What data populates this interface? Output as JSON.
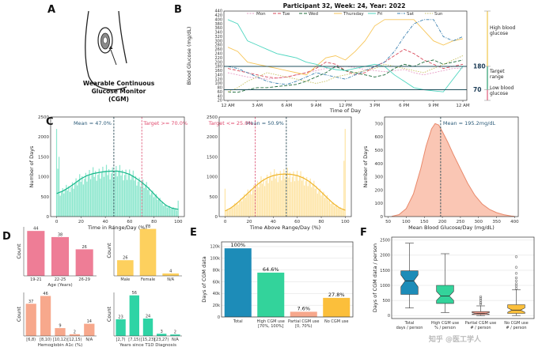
{
  "panels": {
    "A": "A",
    "B": "B",
    "C": "C",
    "D": "D",
    "E": "E",
    "F": "F"
  },
  "panel_a": {
    "caption_lines": [
      "Wearable Continuous",
      "Glucose Monitor",
      "(CGM)"
    ]
  },
  "colors": {
    "pink": "#ee7d96",
    "yellow": "#fdd05e",
    "salmon": "#f7a88c",
    "teal": "#2fd4a5",
    "blue": "#1d8cb8",
    "green_e": "#33d39b",
    "peach": "#f4a091",
    "orange": "#fbbf3b",
    "red_line": "#e06080",
    "dash_line": "#2a4a55"
  },
  "chart_data": [
    {
      "id": "B",
      "type": "line",
      "title": "Participant 32, Week: 24, Year: 2022",
      "xlabel": "Time of Day",
      "ylabel": "Blood Glucose (mg/dL)",
      "x_ticks": [
        "12 AM",
        "3 AM",
        "6 AM",
        "9 AM",
        "12 PM",
        "3 PM",
        "6 PM",
        "9 PM",
        "12 AM"
      ],
      "y_ticks": [
        20,
        40,
        60,
        80,
        100,
        120,
        140,
        160,
        180,
        200,
        220,
        240,
        260,
        280,
        300,
        320,
        340,
        360,
        380,
        400,
        420,
        440
      ],
      "ylim": [
        20,
        440
      ],
      "xlim_hours": [
        0,
        24
      ],
      "thresholds": [
        {
          "value": 180,
          "label": "180"
        },
        {
          "value": 70,
          "label": "70"
        }
      ],
      "side_labels": {
        "high": [
          "High blood",
          "glucose"
        ],
        "target": [
          "Target",
          "range"
        ],
        "low": [
          "Low blood",
          "glucose"
        ]
      },
      "legend_position": "top",
      "series": [
        {
          "name": "Mon",
          "color": "#e8a0c8",
          "dash": "2,1.5",
          "values": [
            150,
            140,
            130,
            125,
            120,
            125,
            130,
            140,
            150,
            160,
            170,
            175,
            180,
            175,
            165,
            160,
            155,
            160,
            165,
            150,
            140,
            150,
            160,
            170,
            170
          ]
        },
        {
          "name": "Tue",
          "color": "#d84a5a",
          "dash": "4,2",
          "values": [
            170,
            160,
            150,
            140,
            130,
            125,
            130,
            140,
            150,
            170,
            200,
            190,
            160,
            140,
            150,
            180,
            200,
            230,
            260,
            240,
            210,
            190,
            170,
            180,
            190
          ]
        },
        {
          "name": "Wed",
          "color": "#1e6b3a",
          "dash": "4,2",
          "values": [
            60,
            58,
            70,
            80,
            80,
            85,
            90,
            95,
            110,
            130,
            150,
            180,
            160,
            150,
            140,
            130,
            140,
            170,
            190,
            180,
            200,
            210,
            190,
            200,
            210
          ]
        },
        {
          "name": "Thursday",
          "color": "#f7c65a",
          "dash": "",
          "values": [
            270,
            250,
            200,
            190,
            180,
            170,
            160,
            150,
            140,
            180,
            220,
            230,
            210,
            250,
            300,
            370,
            400,
            400,
            400,
            400,
            350,
            300,
            280,
            300,
            310
          ]
        },
        {
          "name": "Fri",
          "color": "#4fd6c0",
          "dash": "",
          "values": [
            400,
            380,
            300,
            280,
            260,
            240,
            230,
            220,
            200,
            190,
            175,
            165,
            160,
            170,
            180,
            190,
            180,
            140,
            110,
            80,
            70,
            65,
            60,
            120,
            180
          ]
        },
        {
          "name": "Sat",
          "color": "#3a80b0",
          "dash": "4,1.5,1,1.5",
          "values": [
            180,
            170,
            150,
            130,
            110,
            100,
            95,
            110,
            130,
            150,
            140,
            130,
            120,
            140,
            160,
            180,
            200,
            250,
            320,
            380,
            400,
            400,
            320,
            300,
            320
          ]
        },
        {
          "name": "Sun",
          "color": "#c8c060",
          "dash": "1.5,1.5",
          "values": [
            60,
            80,
            110,
            130,
            150,
            140,
            130,
            120,
            110,
            100,
            110,
            130,
            140,
            150,
            160,
            170,
            190,
            180,
            170,
            160,
            150,
            170,
            190,
            210,
            230
          ]
        }
      ]
    },
    {
      "id": "C1",
      "type": "bar",
      "xlabel": "Time in Range/Day (%)",
      "ylabel": "Number of Days",
      "x_ticks": [
        0,
        20,
        40,
        60,
        80,
        100
      ],
      "y_ticks": [
        0,
        500,
        1000,
        1500,
        2000,
        2500
      ],
      "ylim": [
        0,
        2500
      ],
      "xlim": [
        -5,
        105
      ],
      "mean_label": "Mean = 47.0%",
      "target_label": "Target >= 70.0%",
      "mean_x": 47.0,
      "target_x": 70.0,
      "curve": [
        [
          0,
          580
        ],
        [
          5,
          640
        ],
        [
          10,
          730
        ],
        [
          15,
          840
        ],
        [
          20,
          950
        ],
        [
          25,
          1030
        ],
        [
          30,
          1080
        ],
        [
          35,
          1110
        ],
        [
          40,
          1130
        ],
        [
          45,
          1140
        ],
        [
          50,
          1140
        ],
        [
          55,
          1110
        ],
        [
          60,
          1060
        ],
        [
          65,
          970
        ],
        [
          70,
          860
        ],
        [
          75,
          730
        ],
        [
          80,
          570
        ],
        [
          85,
          410
        ],
        [
          90,
          280
        ],
        [
          95,
          210
        ],
        [
          100,
          180
        ]
      ],
      "spikes": [
        [
          0,
          2200
        ],
        [
          1,
          1200
        ],
        [
          2,
          1500
        ],
        [
          100,
          400
        ]
      ]
    },
    {
      "id": "C2",
      "type": "bar",
      "xlabel": "Time Above Range/Day (%)",
      "ylabel": "",
      "x_ticks": [
        0,
        20,
        40,
        60,
        80,
        100
      ],
      "y_ticks": [
        0,
        500,
        1000,
        1500,
        2000,
        2500
      ],
      "ylim": [
        0,
        2500
      ],
      "xlim": [
        -5,
        105
      ],
      "mean_label": "Mean = 50.9%",
      "target_label": "Target <= 25.0%",
      "mean_x": 50.9,
      "target_x": 25.0,
      "curve": [
        [
          0,
          140
        ],
        [
          5,
          220
        ],
        [
          10,
          340
        ],
        [
          15,
          480
        ],
        [
          20,
          620
        ],
        [
          25,
          760
        ],
        [
          30,
          880
        ],
        [
          35,
          970
        ],
        [
          40,
          1030
        ],
        [
          45,
          1060
        ],
        [
          50,
          1070
        ],
        [
          55,
          1060
        ],
        [
          60,
          1030
        ],
        [
          65,
          970
        ],
        [
          70,
          880
        ],
        [
          75,
          760
        ],
        [
          80,
          620
        ],
        [
          85,
          470
        ],
        [
          90,
          330
        ],
        [
          95,
          220
        ],
        [
          100,
          160
        ]
      ],
      "spikes": [
        [
          0,
          700
        ],
        [
          100,
          2200
        ],
        [
          99,
          1400
        ]
      ]
    },
    {
      "id": "C3",
      "type": "area",
      "xlabel": "Mean Blood Glucose/Day (mg/dL)",
      "ylabel": "Number of Days",
      "x_ticks": [
        50,
        100,
        150,
        200,
        250,
        300,
        350,
        400
      ],
      "y_ticks": [
        0,
        100,
        200,
        300,
        400,
        500,
        600,
        700
      ],
      "ylim": [
        0,
        750
      ],
      "xlim": [
        40,
        410
      ],
      "mean_label": "Mean = 195.2mg/dL",
      "mean_x": 195.2,
      "curve": [
        [
          60,
          2
        ],
        [
          80,
          15
        ],
        [
          100,
          60
        ],
        [
          120,
          170
        ],
        [
          140,
          360
        ],
        [
          155,
          530
        ],
        [
          170,
          660
        ],
        [
          180,
          700
        ],
        [
          190,
          690
        ],
        [
          200,
          640
        ],
        [
          215,
          560
        ],
        [
          230,
          470
        ],
        [
          250,
          360
        ],
        [
          270,
          250
        ],
        [
          290,
          160
        ],
        [
          310,
          95
        ],
        [
          330,
          55
        ],
        [
          350,
          30
        ],
        [
          370,
          14
        ],
        [
          390,
          5
        ],
        [
          400,
          2
        ]
      ]
    },
    {
      "id": "D1",
      "type": "bar",
      "xlabel": "Age (Years)",
      "ylabel": "Count",
      "categories": [
        "19-21",
        "22-25",
        "26-29"
      ],
      "values": [
        44,
        38,
        26
      ],
      "ylim": [
        0,
        48
      ]
    },
    {
      "id": "D2",
      "type": "bar",
      "xlabel": "",
      "ylabel": "Count",
      "categories": [
        "Male",
        "Female",
        "N/A"
      ],
      "values": [
        26,
        78,
        4
      ],
      "ylim": [
        0,
        84
      ]
    },
    {
      "id": "D3",
      "type": "bar",
      "xlabel": "Hemoglobin A1c (%)",
      "ylabel": "Count",
      "categories": [
        "[6,8)",
        "[8,10)",
        "[10,12)",
        "[12,15)",
        "N/A"
      ],
      "values": [
        37,
        46,
        9,
        2,
        14
      ],
      "ylim": [
        0,
        50
      ]
    },
    {
      "id": "D4",
      "type": "bar",
      "xlabel": "Years since T1D Diagnosis",
      "ylabel": "Count",
      "categories": [
        "[2,7)",
        "[7,15)",
        "[15,23)",
        "[23,27)",
        "N/A"
      ],
      "values": [
        23,
        56,
        24,
        3,
        2
      ],
      "ylim": [
        0,
        60
      ]
    },
    {
      "id": "E",
      "type": "bar",
      "xlabel": "",
      "ylabel": "Days of CGM data",
      "categories": [
        "Total",
        "High CGM use\n[70%, 100%]",
        "Partial CGM use\n[0, 70%)",
        "No CGM use"
      ],
      "values": [
        100,
        64.6,
        7.6,
        27.8
      ],
      "value_labels": [
        "100%",
        "64.6%",
        "7.6%",
        "27.8%"
      ],
      "y_ticks": [
        "0",
        "20k",
        "40k",
        "60k",
        "80k",
        "100k",
        "120k"
      ],
      "ylim": [
        0,
        128
      ],
      "total_k": 117
    },
    {
      "id": "F",
      "type": "box",
      "xlabel": "",
      "ylabel": "Days of CGM data / person",
      "categories": [
        "Total\ndays / person",
        "High CGM use\n% / person",
        "Partial CGM use\n# / person",
        "No CGM use\n# / person"
      ],
      "y_ticks": [
        0,
        500,
        1000,
        1500,
        2000,
        2500
      ],
      "ylim": [
        -100,
        2600
      ],
      "boxes": [
        {
          "min": 250,
          "q1": 700,
          "med": 1150,
          "q3": 1480,
          "max": 2400
        },
        {
          "min": 100,
          "q1": 400,
          "med": 650,
          "q3": 1000,
          "max": 2050
        },
        {
          "min": 0,
          "q1": 30,
          "med": 70,
          "q3": 130,
          "max": 320,
          "outliers": [
            380,
            430,
            500,
            560,
            620
          ]
        },
        {
          "min": 0,
          "q1": 70,
          "med": 180,
          "q3": 360,
          "max": 850,
          "outliers": [
            900,
            980,
            1050,
            1150,
            1250,
            1400,
            1600,
            1950
          ]
        }
      ]
    }
  ],
  "watermark": "知乎 @医工学人"
}
